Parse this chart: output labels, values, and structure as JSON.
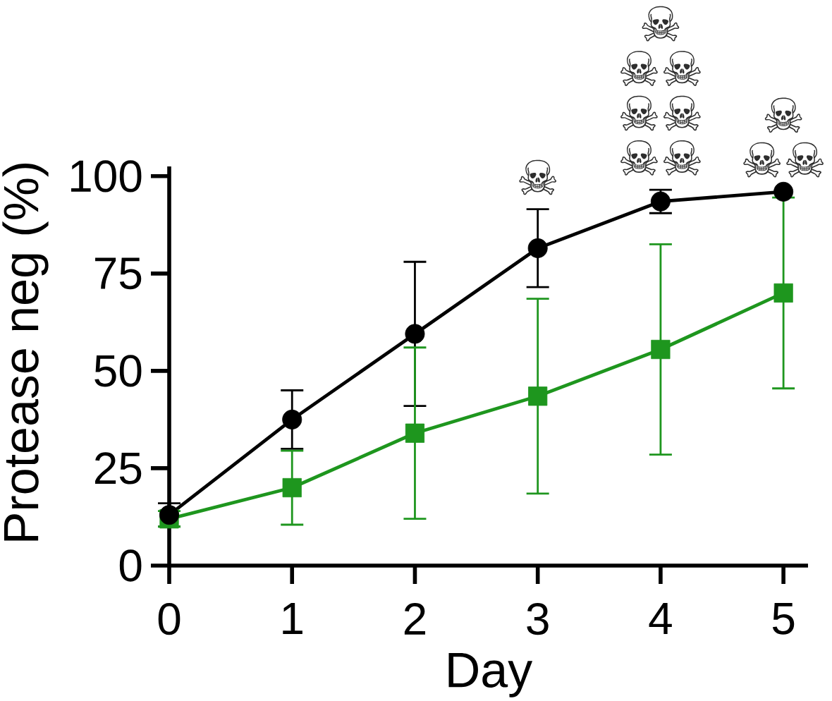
{
  "chart_data": {
    "type": "line",
    "xlabel": "Day",
    "ylabel": "Protease neg (%)",
    "line_style": "solid",
    "x": [
      0,
      1,
      2,
      3,
      4,
      5
    ],
    "xlim": [
      0,
      5.2
    ],
    "xticks": [
      0,
      1,
      2,
      3,
      4,
      5
    ],
    "ylim": [
      0,
      102.5
    ],
    "yticks": [
      0,
      25,
      50,
      75,
      100
    ],
    "series": [
      {
        "color": "#1e961e",
        "marker": "square",
        "values": [
          12,
          20,
          34,
          43.5,
          55.5,
          70
        ],
        "errors": [
          2,
          9.5,
          22,
          25,
          27,
          24.5
        ]
      },
      {
        "color": "#000000",
        "marker": "circle",
        "values": [
          13,
          37.5,
          59.5,
          81.5,
          93.5,
          96
        ],
        "errors": [
          3,
          7.5,
          18.5,
          10,
          3,
          null
        ]
      }
    ],
    "annotations": [
      {
        "text": "☠",
        "x": 3,
        "y": 91.5
      },
      {
        "text": "☠ ☠☠ ☠☠ ☠☠",
        "x": 4,
        "y": 96.5
      },
      {
        "text": "☠ ☠☠",
        "x": 5,
        "y": 96
      }
    ]
  }
}
